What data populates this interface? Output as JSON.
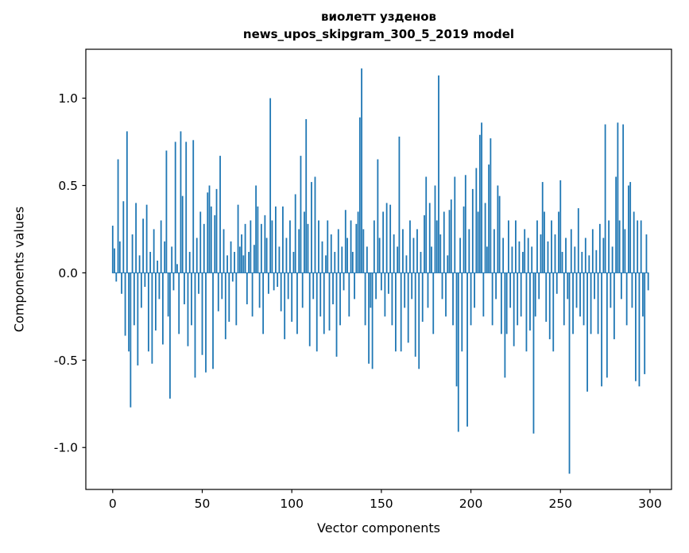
{
  "figure": {
    "title": "виолетт узденов",
    "subtitle": "news_upos_skipgram_300_5_2019 model",
    "xlabel": "Vector components",
    "ylabel": "Components values"
  },
  "chart_data": {
    "type": "bar",
    "title": "виолетт узденов",
    "subtitle": "news_upos_skipgram_300_5_2019 model",
    "xlabel": "Vector components",
    "ylabel": "Components values",
    "bar_color": "#1f77b4",
    "axis_color": "#000000",
    "xlim": [
      -15,
      312
    ],
    "ylim": [
      -1.24,
      1.28
    ],
    "x_ticks": [
      0,
      50,
      100,
      150,
      200,
      250,
      300
    ],
    "x_tick_labels": [
      "0",
      "50",
      "100",
      "150",
      "200",
      "250",
      "300"
    ],
    "y_ticks": [
      -1.0,
      -0.5,
      0.0,
      0.5,
      1.0
    ],
    "y_tick_labels": [
      "-1.0",
      "-0.5",
      "0.0",
      "0.5",
      "1.0"
    ],
    "x_description": "bar index = vector component number, 0 through 299",
    "values": [
      0.27,
      0.14,
      -0.05,
      0.65,
      0.18,
      -0.12,
      0.41,
      -0.36,
      0.81,
      -0.45,
      -0.77,
      0.22,
      -0.3,
      0.4,
      -0.53,
      0.1,
      -0.2,
      0.31,
      -0.08,
      0.39,
      -0.45,
      0.12,
      -0.52,
      0.25,
      -0.33,
      0.07,
      -0.15,
      0.3,
      -0.41,
      0.18,
      0.7,
      -0.25,
      -0.72,
      0.15,
      -0.1,
      0.75,
      0.05,
      -0.35,
      0.81,
      0.44,
      -0.18,
      0.75,
      -0.42,
      0.12,
      -0.3,
      0.76,
      -0.6,
      0.2,
      -0.12,
      0.35,
      -0.47,
      0.28,
      -0.57,
      0.46,
      0.5,
      0.38,
      -0.55,
      0.33,
      0.48,
      -0.22,
      0.67,
      -0.15,
      0.25,
      -0.38,
      0.1,
      -0.28,
      0.18,
      -0.05,
      0.12,
      -0.3,
      0.39,
      0.15,
      0.22,
      0.1,
      0.28,
      -0.18,
      0.12,
      0.3,
      -0.25,
      0.16,
      0.5,
      0.38,
      -0.2,
      0.28,
      -0.35,
      0.33,
      0.2,
      -0.12,
      1.0,
      0.3,
      -0.1,
      0.38,
      -0.08,
      0.15,
      -0.22,
      0.38,
      -0.38,
      0.2,
      -0.15,
      0.3,
      -0.28,
      0.12,
      0.45,
      -0.35,
      0.25,
      0.67,
      -0.2,
      0.35,
      0.88,
      0.28,
      -0.42,
      0.52,
      -0.15,
      0.55,
      -0.45,
      0.3,
      -0.25,
      0.18,
      -0.35,
      0.1,
      0.3,
      -0.33,
      0.22,
      -0.18,
      0.12,
      -0.48,
      0.25,
      -0.3,
      0.15,
      -0.1,
      0.36,
      0.2,
      -0.25,
      0.3,
      0.12,
      -0.15,
      0.28,
      0.35,
      0.89,
      1.17,
      0.25,
      -0.3,
      0.15,
      -0.52,
      -0.2,
      -0.55,
      0.3,
      -0.15,
      0.65,
      0.2,
      -0.1,
      0.35,
      -0.25,
      0.4,
      -0.12,
      0.39,
      -0.3,
      0.22,
      -0.45,
      0.15,
      0.78,
      -0.45,
      0.25,
      -0.2,
      0.1,
      -0.4,
      0.3,
      -0.15,
      0.2,
      -0.48,
      0.25,
      -0.55,
      0.12,
      -0.28,
      0.33,
      0.55,
      -0.2,
      0.4,
      0.15,
      -0.35,
      0.5,
      0.3,
      1.13,
      0.22,
      -0.15,
      0.35,
      -0.25,
      0.1,
      0.36,
      0.42,
      -0.3,
      0.55,
      -0.65,
      -0.91,
      0.2,
      -0.45,
      0.38,
      0.56,
      -0.88,
      0.25,
      -0.3,
      0.48,
      -0.2,
      0.6,
      0.35,
      0.79,
      0.86,
      -0.25,
      0.4,
      0.15,
      0.62,
      0.77,
      -0.3,
      0.25,
      -0.15,
      0.5,
      0.44,
      -0.35,
      0.2,
      -0.6,
      -0.35,
      0.3,
      -0.2,
      0.15,
      -0.42,
      0.3,
      -0.3,
      0.18,
      -0.25,
      0.12,
      0.25,
      -0.45,
      0.2,
      -0.33,
      0.15,
      -0.92,
      -0.25,
      0.3,
      -0.15,
      0.22,
      0.52,
      0.35,
      -0.28,
      0.18,
      -0.38,
      0.3,
      -0.45,
      0.22,
      -0.12,
      0.35,
      0.53,
      0.12,
      -0.3,
      0.2,
      -0.15,
      -1.15,
      0.25,
      -0.35,
      0.15,
      -0.2,
      0.37,
      -0.25,
      0.12,
      -0.3,
      0.2,
      -0.68,
      0.1,
      -0.35,
      0.25,
      -0.15,
      0.13,
      -0.35,
      0.28,
      -0.65,
      0.2,
      0.85,
      -0.6,
      0.3,
      -0.2,
      0.15,
      -0.38,
      0.55,
      0.86,
      0.3,
      -0.15,
      0.85,
      0.25,
      -0.3,
      0.5,
      0.52,
      -0.2,
      0.35,
      -0.62,
      0.3,
      -0.65,
      0.3,
      -0.25,
      -0.58,
      0.22,
      -0.1
    ]
  }
}
